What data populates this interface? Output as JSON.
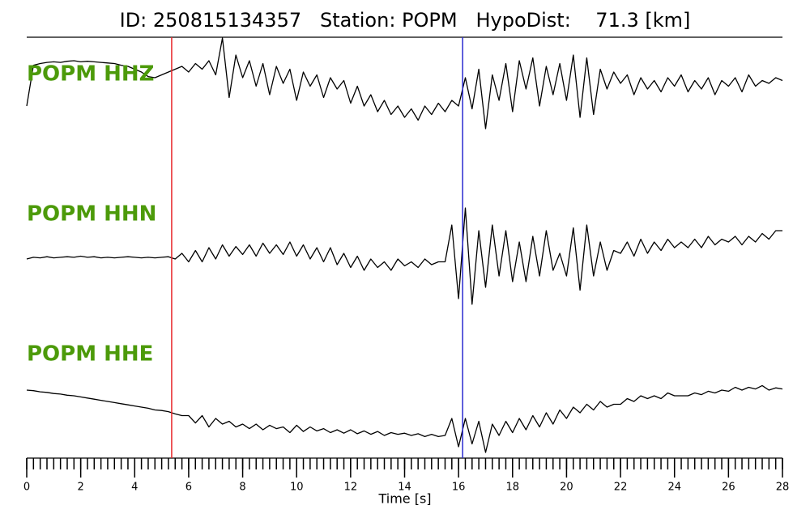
{
  "chart_data": {
    "type": "seismogram",
    "title": "ID: 250815134357   Station: POPM   HypoDist:    71.3 [km]",
    "xlabel": "Time [s]",
    "xlim": [
      0,
      28
    ],
    "xticks": [
      0,
      2,
      4,
      6,
      8,
      10,
      12,
      14,
      16,
      18,
      20,
      22,
      24,
      26,
      28
    ],
    "xminorticks": [
      0,
      0.25,
      0.5,
      0.75,
      1,
      1.25,
      1.5,
      1.75,
      2,
      2.25,
      2.5,
      2.75,
      3,
      3.25,
      3.5,
      3.75,
      4,
      4.25,
      4.5,
      4.75,
      5,
      5.25,
      5.5,
      5.75,
      6,
      6.25,
      6.5,
      6.75,
      7,
      7.25,
      7.5,
      7.75,
      8,
      8.25,
      8.5,
      8.75,
      9,
      9.25,
      9.5,
      9.75,
      10,
      10.25,
      10.5,
      10.75,
      11,
      11.25,
      11.5,
      11.75,
      12,
      12.25,
      12.5,
      12.75,
      13,
      13.25,
      13.5,
      13.75,
      14,
      14.25,
      14.5,
      14.75,
      15,
      15.25,
      15.5,
      15.75,
      16,
      16.25,
      16.5,
      16.75,
      17,
      17.25,
      17.5,
      17.75,
      18,
      18.25,
      18.5,
      18.75,
      19,
      19.25,
      19.5,
      19.75,
      20,
      20.25,
      20.5,
      20.75,
      21,
      21.25,
      21.5,
      21.75,
      22,
      22.25,
      22.5,
      22.75,
      23,
      23.25,
      23.5,
      23.75,
      24,
      24.25,
      24.5,
      24.75,
      25,
      25.25,
      25.5,
      25.75,
      26,
      26.25,
      26.5,
      26.75,
      27,
      27.25,
      27.5,
      27.75,
      28
    ],
    "x": [
      0,
      0.25,
      0.5,
      0.75,
      1,
      1.25,
      1.5,
      1.75,
      2,
      2.25,
      2.5,
      2.75,
      3,
      3.25,
      3.5,
      3.75,
      4,
      4.25,
      4.5,
      4.75,
      5,
      5.25,
      5.5,
      5.75,
      6,
      6.25,
      6.5,
      6.75,
      7,
      7.25,
      7.5,
      7.75,
      8,
      8.25,
      8.5,
      8.75,
      9,
      9.25,
      9.5,
      9.75,
      10,
      10.25,
      10.5,
      10.75,
      11,
      11.25,
      11.5,
      11.75,
      12,
      12.25,
      12.5,
      12.75,
      13,
      13.25,
      13.5,
      13.75,
      14,
      14.25,
      14.5,
      14.75,
      15,
      15.25,
      15.5,
      15.75,
      16,
      16.25,
      16.5,
      16.75,
      17,
      17.25,
      17.5,
      17.75,
      18,
      18.25,
      18.5,
      18.75,
      19,
      19.25,
      19.5,
      19.75,
      20,
      20.25,
      20.5,
      20.75,
      21,
      21.25,
      21.5,
      21.75,
      22,
      22.25,
      22.5,
      22.75,
      23,
      23.25,
      23.5,
      23.75,
      24,
      24.25,
      24.5,
      24.75,
      25,
      25.25,
      25.5,
      25.75,
      26,
      26.25,
      26.5,
      26.75,
      27,
      27.25,
      27.5,
      27.75,
      28
    ],
    "ylim": [
      -1,
      1
    ],
    "picks": [
      {
        "time": 5.37,
        "color": "#e8272a"
      },
      {
        "time": 16.15,
        "color": "#2a2ad0"
      }
    ],
    "label_color": "#4c9a0a",
    "series": [
      {
        "name": "POPM HHZ",
        "color": "#000000",
        "values": [
          -0.3,
          0.42,
          0.45,
          0.47,
          0.48,
          0.47,
          0.49,
          0.5,
          0.48,
          0.49,
          0.48,
          0.47,
          0.46,
          0.45,
          0.42,
          0.4,
          0.35,
          0.3,
          0.22,
          0.2,
          0.25,
          0.3,
          0.35,
          0.4,
          0.3,
          0.45,
          0.35,
          0.5,
          0.25,
          0.9,
          -0.15,
          0.6,
          0.2,
          0.5,
          0.05,
          0.45,
          -0.1,
          0.4,
          0.1,
          0.35,
          -0.2,
          0.3,
          0.05,
          0.25,
          -0.15,
          0.2,
          0.0,
          0.15,
          -0.25,
          0.05,
          -0.3,
          -0.1,
          -0.4,
          -0.2,
          -0.45,
          -0.3,
          -0.5,
          -0.35,
          -0.55,
          -0.3,
          -0.45,
          -0.25,
          -0.4,
          -0.2,
          -0.3,
          0.2,
          -0.35,
          0.35,
          -0.7,
          0.25,
          -0.2,
          0.45,
          -0.4,
          0.5,
          0.0,
          0.55,
          -0.3,
          0.4,
          -0.1,
          0.45,
          -0.2,
          0.6,
          -0.5,
          0.55,
          -0.45,
          0.35,
          0.0,
          0.3,
          0.1,
          0.25,
          -0.1,
          0.2,
          0.0,
          0.15,
          -0.05,
          0.2,
          0.05,
          0.25,
          -0.05,
          0.15,
          0.0,
          0.2,
          -0.1,
          0.15,
          0.05,
          0.2,
          -0.05,
          0.25,
          0.05,
          0.15,
          0.1,
          0.2,
          0.15
        ]
      },
      {
        "name": "POPM HHN",
        "color": "#000000",
        "values": [
          0.0,
          0.03,
          0.02,
          0.04,
          0.02,
          0.03,
          0.04,
          0.03,
          0.05,
          0.03,
          0.04,
          0.02,
          0.03,
          0.02,
          0.03,
          0.04,
          0.03,
          0.02,
          0.03,
          0.02,
          0.03,
          0.04,
          0.0,
          0.1,
          -0.05,
          0.15,
          -0.05,
          0.2,
          0.0,
          0.25,
          0.05,
          0.22,
          0.08,
          0.25,
          0.05,
          0.28,
          0.1,
          0.25,
          0.08,
          0.3,
          0.05,
          0.25,
          0.0,
          0.2,
          -0.05,
          0.2,
          -0.1,
          0.1,
          -0.15,
          0.05,
          -0.2,
          0.0,
          -0.15,
          -0.05,
          -0.2,
          0.0,
          -0.12,
          -0.05,
          -0.15,
          0.0,
          -0.1,
          -0.05,
          -0.05,
          0.6,
          -0.7,
          0.9,
          -0.8,
          0.5,
          -0.5,
          0.6,
          -0.3,
          0.5,
          -0.4,
          0.3,
          -0.4,
          0.4,
          -0.3,
          0.5,
          -0.2,
          0.1,
          -0.3,
          0.55,
          -0.55,
          0.6,
          -0.3,
          0.3,
          -0.2,
          0.15,
          0.1,
          0.3,
          0.05,
          0.35,
          0.1,
          0.3,
          0.15,
          0.35,
          0.2,
          0.3,
          0.2,
          0.35,
          0.2,
          0.4,
          0.25,
          0.35,
          0.3,
          0.4,
          0.25,
          0.4,
          0.3,
          0.45,
          0.35,
          0.5,
          0.5
        ]
      },
      {
        "name": "POPM HHE",
        "color": "#000000",
        "values": [
          0.4,
          0.39,
          0.37,
          0.36,
          0.34,
          0.33,
          0.31,
          0.3,
          0.28,
          0.26,
          0.24,
          0.22,
          0.2,
          0.18,
          0.16,
          0.14,
          0.12,
          0.1,
          0.08,
          0.05,
          0.04,
          0.02,
          -0.02,
          -0.05,
          -0.05,
          -0.18,
          -0.05,
          -0.25,
          -0.1,
          -0.2,
          -0.15,
          -0.25,
          -0.2,
          -0.28,
          -0.2,
          -0.3,
          -0.22,
          -0.28,
          -0.25,
          -0.35,
          -0.22,
          -0.33,
          -0.25,
          -0.32,
          -0.28,
          -0.35,
          -0.3,
          -0.36,
          -0.3,
          -0.37,
          -0.32,
          -0.38,
          -0.33,
          -0.4,
          -0.35,
          -0.38,
          -0.36,
          -0.4,
          -0.37,
          -0.42,
          -0.38,
          -0.42,
          -0.4,
          -0.1,
          -0.6,
          -0.1,
          -0.55,
          -0.15,
          -0.7,
          -0.2,
          -0.4,
          -0.15,
          -0.35,
          -0.1,
          -0.3,
          -0.05,
          -0.25,
          0.0,
          -0.2,
          0.05,
          -0.1,
          0.1,
          0.0,
          0.15,
          0.05,
          0.2,
          0.1,
          0.15,
          0.15,
          0.25,
          0.2,
          0.3,
          0.25,
          0.3,
          0.25,
          0.35,
          0.3,
          0.3,
          0.3,
          0.35,
          0.32,
          0.38,
          0.35,
          0.4,
          0.38,
          0.45,
          0.4,
          0.45,
          0.42,
          0.48,
          0.4,
          0.44,
          0.42
        ]
      }
    ]
  }
}
